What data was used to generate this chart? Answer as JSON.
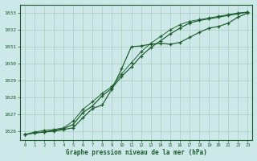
{
  "xlabel": "Graphe pression niveau de la mer (hPa)",
  "bg_color": "#cce8e8",
  "grid_color": "#aaccbb",
  "line_color": "#1a5c2a",
  "x_values": [
    0,
    1,
    2,
    3,
    4,
    5,
    6,
    7,
    8,
    9,
    10,
    11,
    12,
    13,
    14,
    15,
    16,
    17,
    18,
    19,
    20,
    21,
    22,
    23
  ],
  "line1": [
    1025.8,
    1025.9,
    1025.95,
    1026.0,
    1026.1,
    1026.2,
    1026.8,
    1027.35,
    1027.55,
    1028.5,
    1029.7,
    1031.0,
    1031.05,
    1031.15,
    1031.2,
    1031.15,
    1031.25,
    1031.55,
    1031.85,
    1032.1,
    1032.2,
    1032.4,
    1032.75,
    1033.0
  ],
  "line2": [
    1025.8,
    1025.9,
    1025.95,
    1026.05,
    1026.15,
    1026.4,
    1027.1,
    1027.5,
    1028.1,
    1028.55,
    1029.25,
    1029.8,
    1030.45,
    1030.95,
    1031.35,
    1031.75,
    1032.1,
    1032.4,
    1032.55,
    1032.65,
    1032.75,
    1032.85,
    1032.95,
    1033.05
  ],
  "line3": [
    1025.8,
    1025.95,
    1026.05,
    1026.1,
    1026.2,
    1026.6,
    1027.3,
    1027.75,
    1028.25,
    1028.65,
    1029.4,
    1030.05,
    1030.7,
    1031.2,
    1031.6,
    1032.0,
    1032.3,
    1032.5,
    1032.6,
    1032.7,
    1032.8,
    1032.9,
    1033.0,
    1033.05
  ],
  "ylim": [
    1025.5,
    1033.5
  ],
  "yticks": [
    1026,
    1027,
    1028,
    1029,
    1030,
    1031,
    1032,
    1033
  ],
  "xlim": [
    -0.5,
    23.5
  ]
}
